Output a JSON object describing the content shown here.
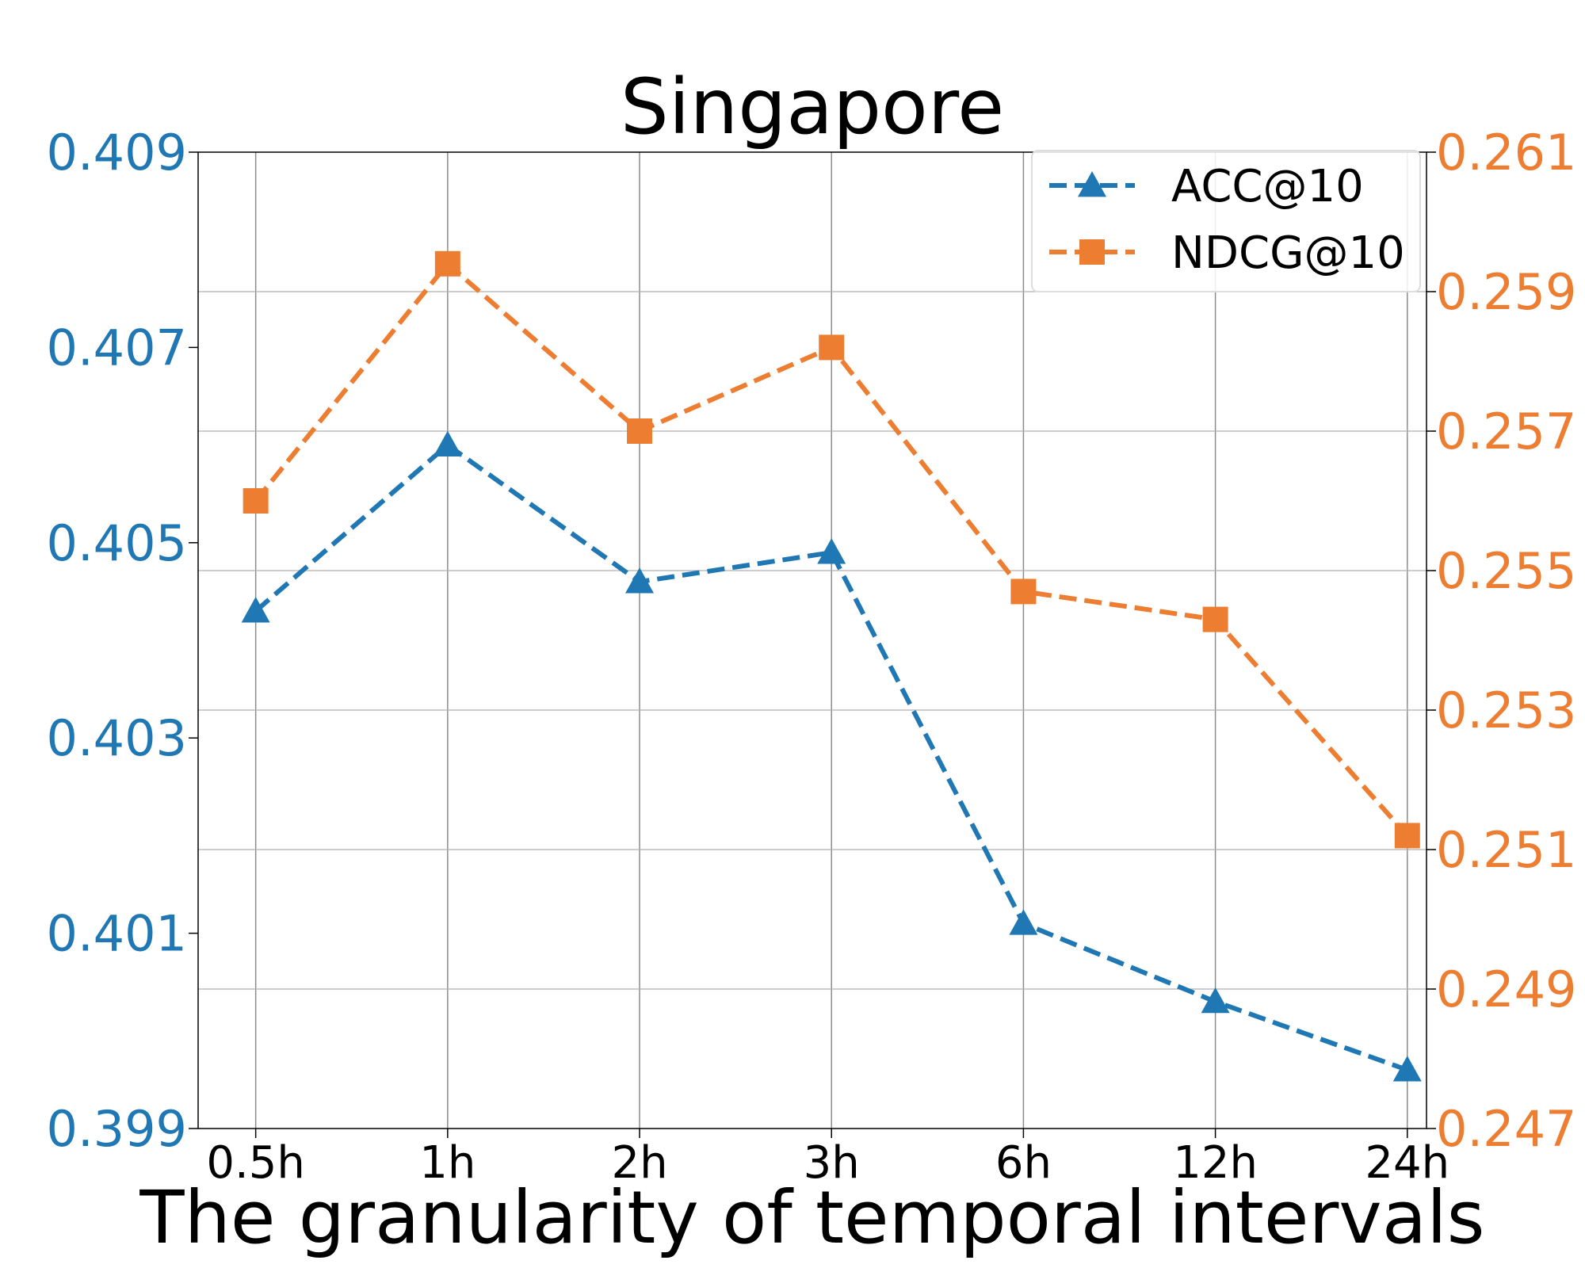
{
  "colors": {
    "left_series": "#1f77b4",
    "right_series": "#ed7d31",
    "axis_text": "#000000",
    "grid": "#b0b0b0"
  },
  "chart_data": {
    "type": "line",
    "title": "Singapore",
    "xlabel": "The granularity of temporal intervals",
    "categories": [
      "0.5h",
      "1h",
      "2h",
      "3h",
      "6h",
      "12h",
      "24h"
    ],
    "y_left": {
      "range": [
        0.399,
        0.409
      ],
      "ticks": [
        0.399,
        0.401,
        0.403,
        0.405,
        0.407,
        0.409
      ],
      "tick_labels": [
        "0.399",
        "0.401",
        "0.403",
        "0.405",
        "0.407",
        "0.409"
      ]
    },
    "y_right": {
      "range": [
        0.247,
        0.261
      ],
      "ticks": [
        0.247,
        0.249,
        0.251,
        0.253,
        0.255,
        0.257,
        0.259,
        0.261
      ],
      "tick_labels": [
        "0.247",
        "0.249",
        "0.251",
        "0.253",
        "0.255",
        "0.257",
        "0.259",
        "0.261"
      ]
    },
    "series": [
      {
        "name": "ACC@10",
        "axis": "left",
        "marker": "triangle",
        "linestyle": "dashed",
        "color": "#1f77b4",
        "values": [
          0.4043,
          0.406,
          0.4046,
          0.4049,
          0.4011,
          0.4003,
          0.3996
        ]
      },
      {
        "name": "NDCG@10",
        "axis": "right",
        "marker": "square",
        "linestyle": "dashed",
        "color": "#ed7d31",
        "values": [
          0.256,
          0.2594,
          0.257,
          0.2582,
          0.2547,
          0.2543,
          0.2512
        ]
      }
    ],
    "grid": true,
    "legend": "top-right"
  }
}
